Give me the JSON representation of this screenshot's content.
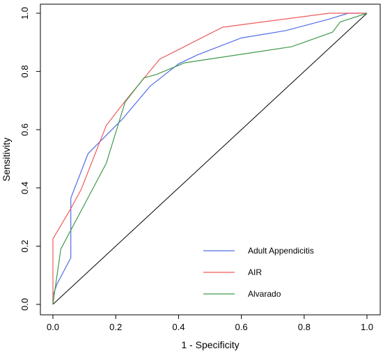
{
  "chart_data": {
    "type": "line",
    "title": "",
    "xlabel": "1 - Specificity",
    "ylabel": "Sensitivity",
    "xlim": [
      0,
      1
    ],
    "ylim": [
      0,
      1
    ],
    "xticks": [
      "0.0",
      "0.2",
      "0.4",
      "0.6",
      "0.8",
      "1.0"
    ],
    "yticks": [
      "0.0",
      "0.2",
      "0.4",
      "0.6",
      "0.8",
      "1.0"
    ],
    "grid": false,
    "legend_position": "bottom-right",
    "reference_line": [
      [
        0,
        0
      ],
      [
        1,
        1
      ]
    ],
    "series": [
      {
        "name": "Adult Appendicitis",
        "color": "#4f6de8",
        "points": [
          [
            0,
            0
          ],
          [
            0,
            0.03
          ],
          [
            0.013,
            0.07
          ],
          [
            0.057,
            0.16
          ],
          [
            0.057,
            0.365
          ],
          [
            0.112,
            0.518
          ],
          [
            0.22,
            0.635
          ],
          [
            0.31,
            0.75
          ],
          [
            0.4,
            0.826
          ],
          [
            0.46,
            0.857
          ],
          [
            0.6,
            0.915
          ],
          [
            0.74,
            0.94
          ],
          [
            0.88,
            0.98
          ],
          [
            0.94,
            1.0
          ],
          [
            1.0,
            1.0
          ]
        ]
      },
      {
        "name": "AIR",
        "color": "#f05a5a",
        "points": [
          [
            0,
            0
          ],
          [
            0,
            0.225
          ],
          [
            0.055,
            0.325
          ],
          [
            0.09,
            0.395
          ],
          [
            0.17,
            0.615
          ],
          [
            0.235,
            0.705
          ],
          [
            0.34,
            0.842
          ],
          [
            0.54,
            0.952
          ],
          [
            0.88,
            1.0
          ],
          [
            1.0,
            1.0
          ]
        ]
      },
      {
        "name": "Alvarado",
        "color": "#3f9a4a",
        "points": [
          [
            0,
            0
          ],
          [
            0.005,
            0.04
          ],
          [
            0.025,
            0.19
          ],
          [
            0.17,
            0.485
          ],
          [
            0.23,
            0.695
          ],
          [
            0.29,
            0.778
          ],
          [
            0.33,
            0.79
          ],
          [
            0.42,
            0.83
          ],
          [
            0.76,
            0.885
          ],
          [
            0.89,
            0.935
          ],
          [
            0.915,
            0.97
          ],
          [
            1.0,
            1.0
          ]
        ]
      }
    ]
  }
}
